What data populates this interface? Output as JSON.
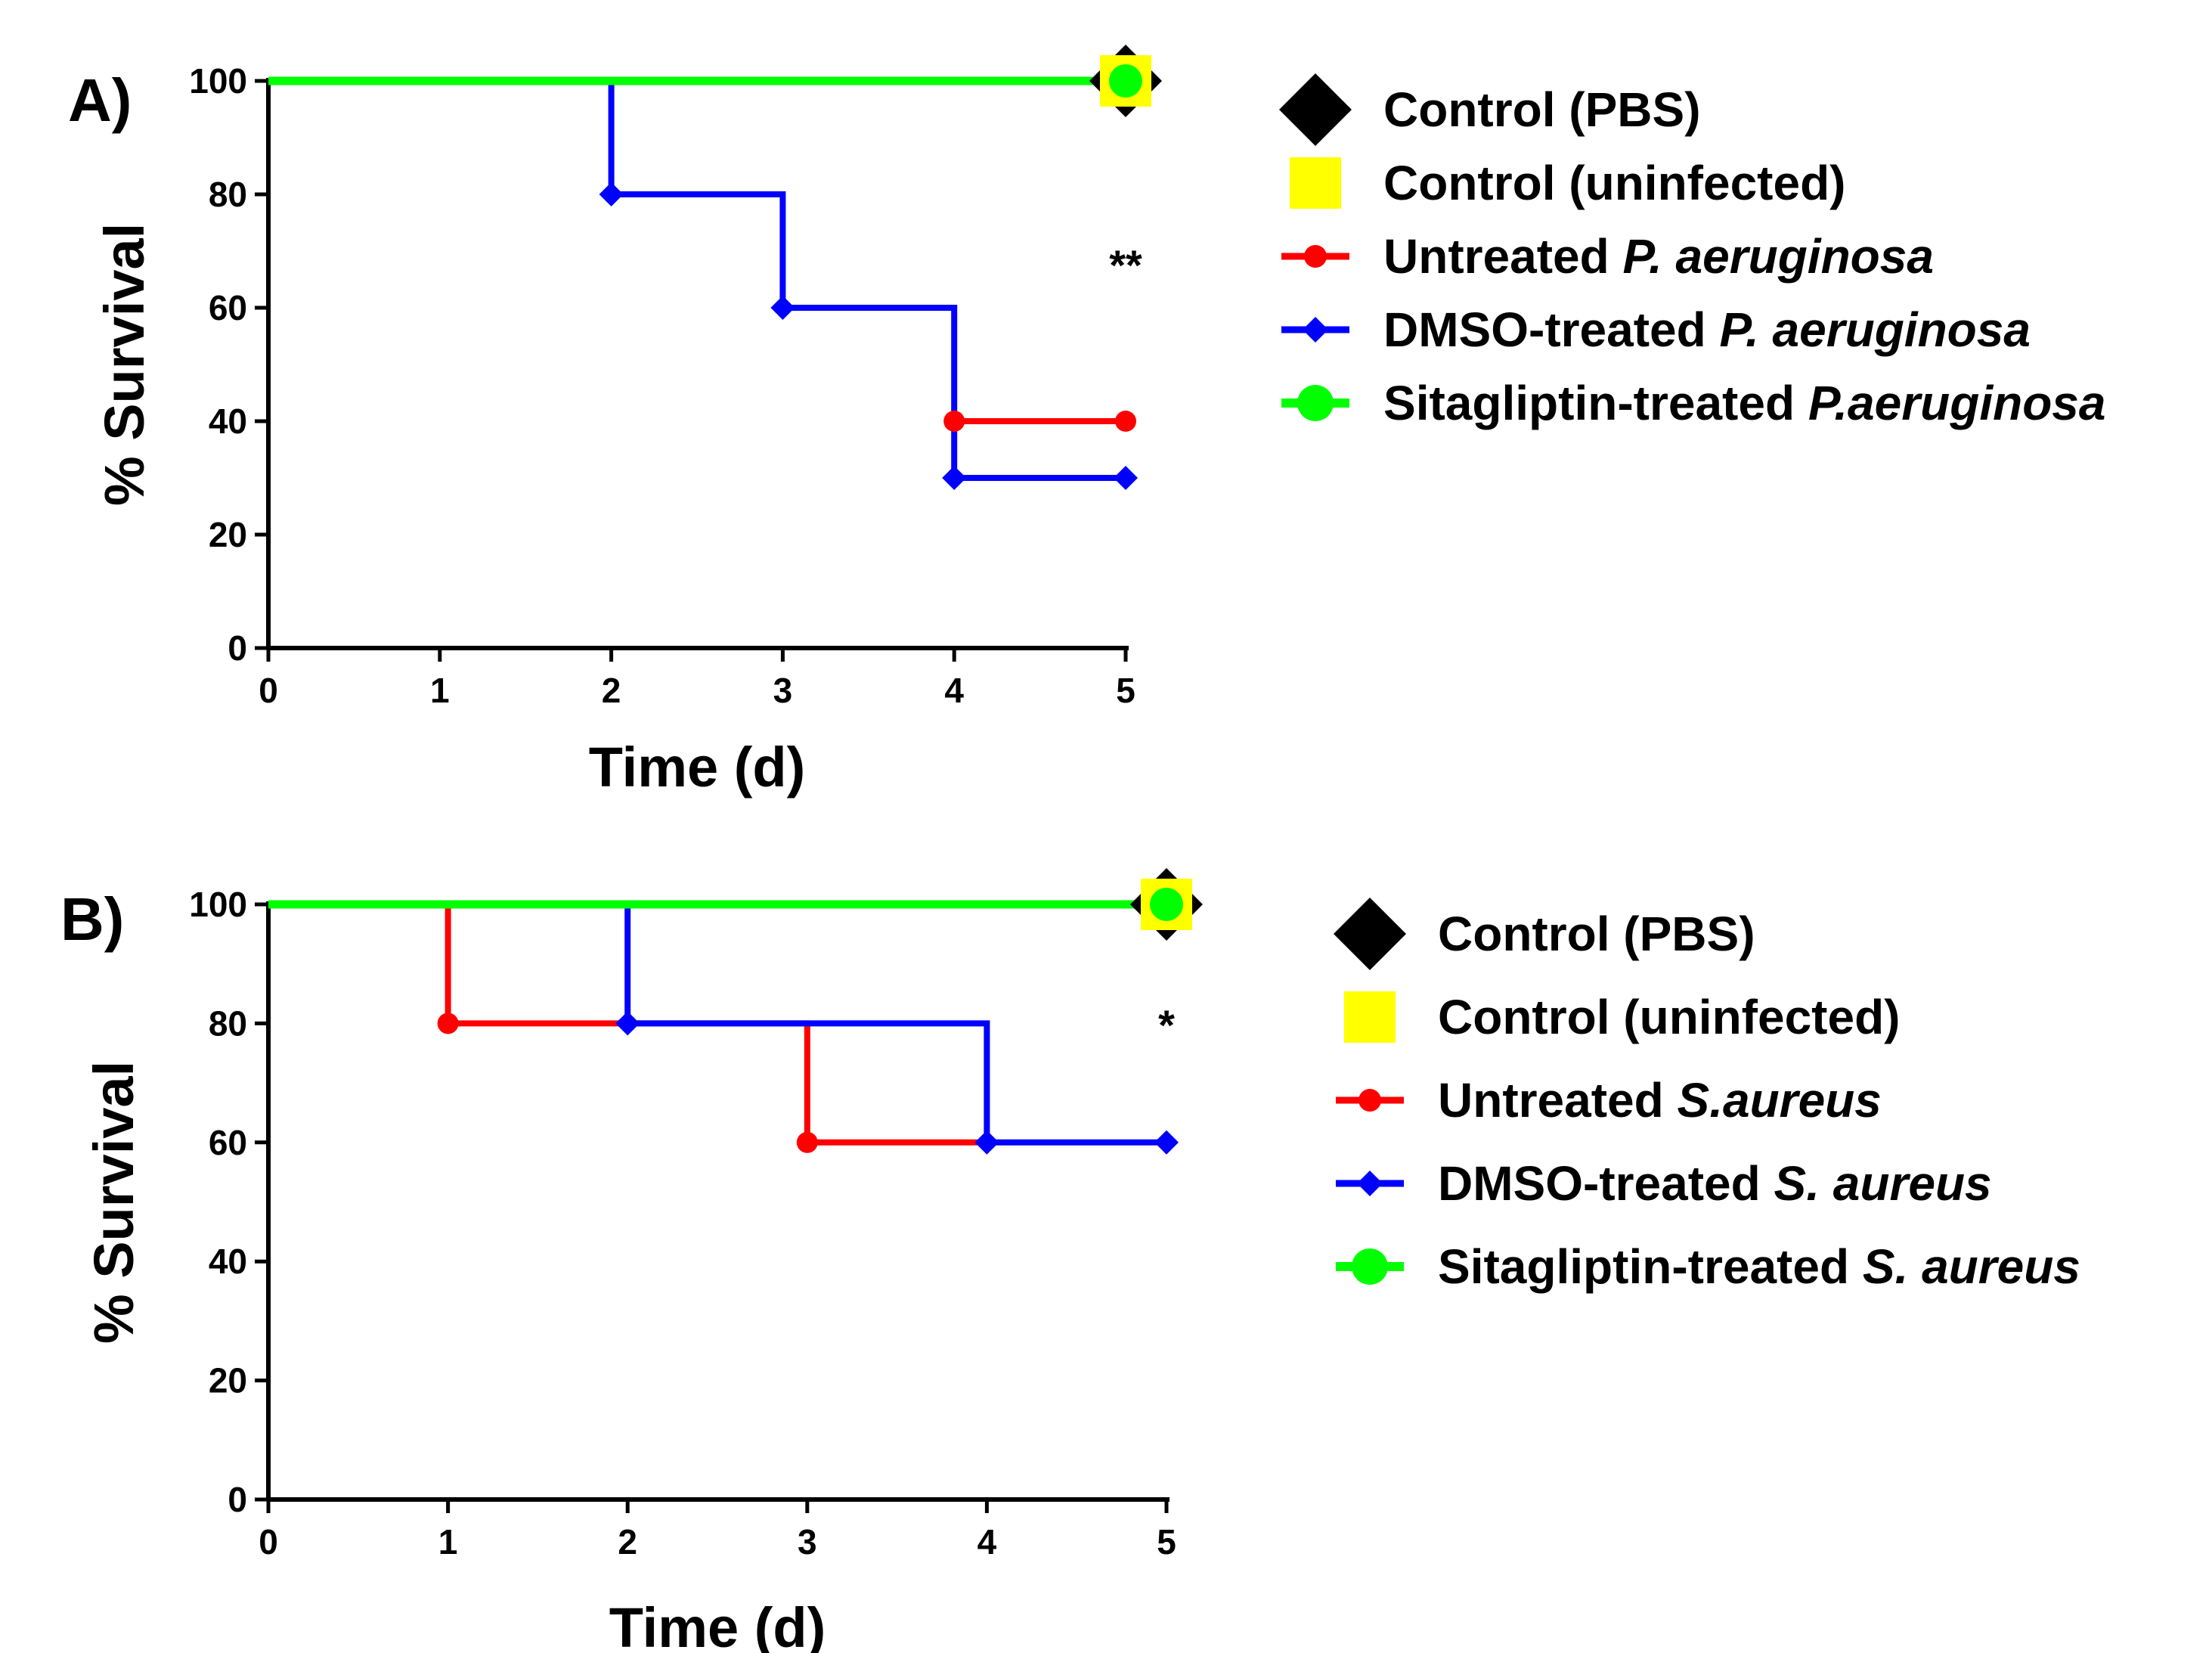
{
  "chart_data": [
    {
      "type": "line",
      "subtype": "kaplan-meier-step",
      "panel_label": "A)",
      "xlabel": "Time (d)",
      "ylabel": "% Survival",
      "xlim": [
        0,
        5
      ],
      "ylim": [
        0,
        100
      ],
      "x_ticks": [
        "0",
        "1",
        "2",
        "3",
        "4",
        "5"
      ],
      "y_ticks": [
        "0",
        "20",
        "40",
        "60",
        "80",
        "100"
      ],
      "significance": "**",
      "series": [
        {
          "name": "Control (PBS)",
          "name_plain": "Control (PBS)",
          "name_italic": "",
          "color": "#000000",
          "marker": "diamond-large",
          "x": [
            0,
            5
          ],
          "y": [
            100,
            100
          ],
          "marked": [
            5
          ]
        },
        {
          "name": "Control (uninfected)",
          "name_plain": "Control (uninfected)",
          "name_italic": "",
          "color": "#ffff00",
          "marker": "square",
          "x": [
            0,
            5
          ],
          "y": [
            100,
            100
          ],
          "marked": [
            5
          ]
        },
        {
          "name": "Untreated P. aeruginosa",
          "name_plain": "Untreated ",
          "name_italic": "P. aeruginosa",
          "color": "#ff0000",
          "marker": "circle",
          "x": [
            4,
            5
          ],
          "y": [
            40,
            40
          ],
          "marked": [
            4,
            5
          ]
        },
        {
          "name": "DMSO-treated P. aeruginosa",
          "name_plain": "DMSO-treated ",
          "name_italic": "P. aeruginosa",
          "color": "#0000ff",
          "marker": "diamond",
          "x": [
            0,
            2,
            3,
            4,
            5
          ],
          "y": [
            100,
            80,
            60,
            30,
            30
          ],
          "marked": [
            2,
            3,
            4,
            5
          ]
        },
        {
          "name": "Sitagliptin-treated P.aeruginosa",
          "name_plain": "Sitagliptin-treated ",
          "name_italic": "P.aeruginosa",
          "color": "#00ff00",
          "marker": "circle-large",
          "x": [
            0,
            5
          ],
          "y": [
            100,
            100
          ],
          "marked": [
            5
          ]
        }
      ]
    },
    {
      "type": "line",
      "subtype": "kaplan-meier-step",
      "panel_label": "B)",
      "xlabel": "Time (d)",
      "ylabel": "% Survival",
      "xlim": [
        0,
        5
      ],
      "ylim": [
        0,
        100
      ],
      "x_ticks": [
        "0",
        "1",
        "2",
        "3",
        "4",
        "5"
      ],
      "y_ticks": [
        "0",
        "20",
        "40",
        "60",
        "80",
        "100"
      ],
      "significance": "*",
      "series": [
        {
          "name": "Control (PBS)",
          "name_plain": "Control (PBS)",
          "name_italic": "",
          "color": "#000000",
          "marker": "diamond-large",
          "x": [
            0,
            5
          ],
          "y": [
            100,
            100
          ],
          "marked": [
            5
          ]
        },
        {
          "name": "Control (uninfected)",
          "name_plain": "Control (uninfected)",
          "name_italic": "",
          "color": "#ffff00",
          "marker": "square",
          "x": [
            0,
            5
          ],
          "y": [
            100,
            100
          ],
          "marked": [
            5
          ]
        },
        {
          "name": "Untreated S.aureus",
          "name_plain": "Untreated ",
          "name_italic": "S.aureus",
          "color": "#ff0000",
          "marker": "circle",
          "x": [
            0,
            1,
            3,
            4
          ],
          "y": [
            100,
            80,
            60,
            60
          ],
          "marked": [
            1,
            3
          ]
        },
        {
          "name": "DMSO-treated S. aureus",
          "name_plain": "DMSO-treated ",
          "name_italic": "S. aureus",
          "color": "#0000ff",
          "marker": "diamond",
          "x": [
            0,
            2,
            4,
            5
          ],
          "y": [
            100,
            80,
            60,
            60
          ],
          "marked": [
            2,
            4,
            5
          ]
        },
        {
          "name": "Sitagliptin-treated S. aureus",
          "name_plain": "Sitagliptin-treated ",
          "name_italic": "S. aureus",
          "color": "#00ff00",
          "marker": "circle-large",
          "x": [
            0,
            5
          ],
          "y": [
            100,
            100
          ],
          "marked": [
            5
          ]
        }
      ]
    }
  ]
}
